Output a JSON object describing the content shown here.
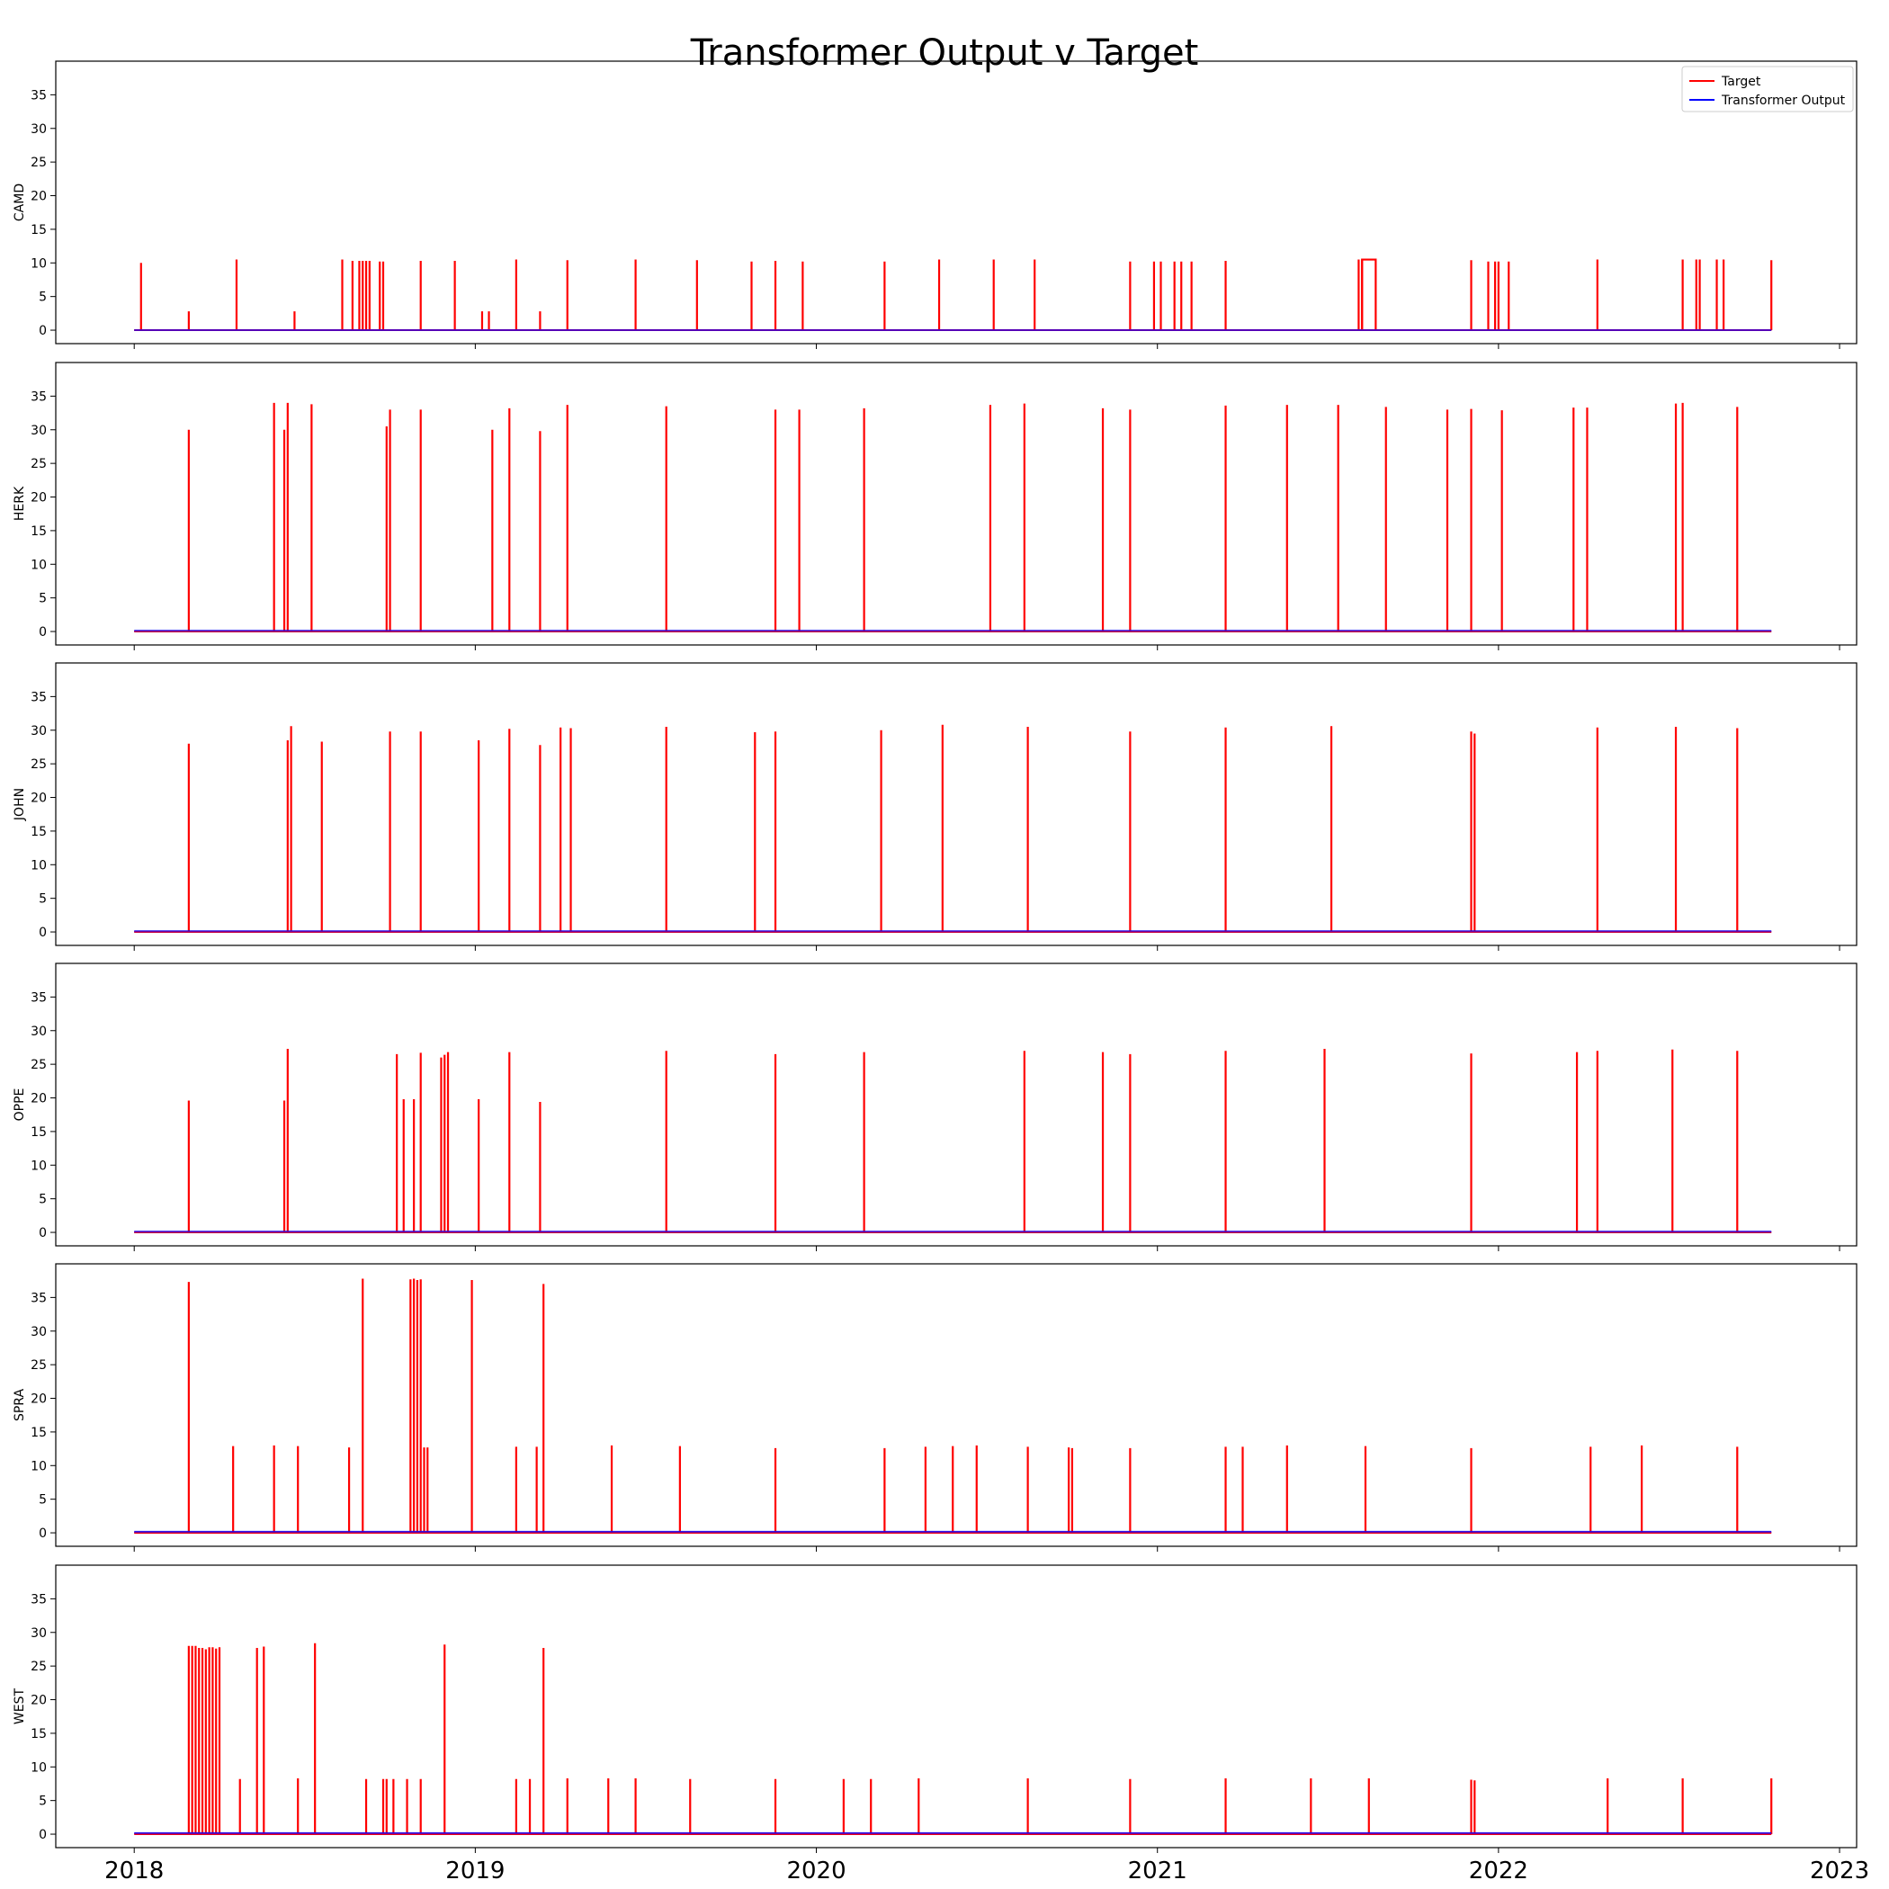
{
  "chart_data": {
    "type": "line",
    "title": "Transformer Output v Target",
    "xlabel": "",
    "x_ticks": [
      "2018",
      "2019",
      "2020",
      "2021",
      "2022",
      "2023"
    ],
    "xlim": [
      2017.77,
      2023.05
    ],
    "data_range": [
      2018.0,
      2022.8
    ],
    "y_ticks": [
      0,
      5,
      10,
      15,
      20,
      25,
      30,
      35
    ],
    "ylim": [
      -2,
      40
    ],
    "grid": false,
    "shared_x": true,
    "legend": {
      "placement": "top-right",
      "panel": 0,
      "entries": [
        {
          "label": "Target",
          "color": "#ff0000"
        },
        {
          "label": "Transformer Output",
          "color": "#0000ff"
        }
      ]
    },
    "series_colors": {
      "Target": "#ff0000",
      "Transformer Output": "#0000ff",
      "overlap": "#8b008b"
    },
    "panels": [
      {
        "ylabel": "CAMD",
        "target_spikes": [
          [
            2018.02,
            10
          ],
          [
            2018.16,
            2.8
          ],
          [
            2018.3,
            10.5
          ],
          [
            2018.47,
            2.8
          ],
          [
            2018.61,
            10.5
          ],
          [
            2018.64,
            10.3
          ],
          [
            2018.66,
            10.3
          ],
          [
            2018.67,
            10.3
          ],
          [
            2018.68,
            10.3
          ],
          [
            2018.69,
            10.3
          ],
          [
            2018.72,
            10.2
          ],
          [
            2018.73,
            10.2
          ],
          [
            2018.84,
            10.3
          ],
          [
            2018.94,
            10.3
          ],
          [
            2019.02,
            2.8
          ],
          [
            2019.04,
            2.8
          ],
          [
            2019.12,
            10.5
          ],
          [
            2019.19,
            2.8
          ],
          [
            2019.27,
            10.4
          ],
          [
            2019.47,
            10.5
          ],
          [
            2019.65,
            10.4
          ],
          [
            2019.81,
            10.2
          ],
          [
            2019.88,
            10.3
          ],
          [
            2019.96,
            10.2
          ],
          [
            2020.2,
            10.2
          ],
          [
            2020.36,
            10.5
          ],
          [
            2020.52,
            10.5
          ],
          [
            2020.64,
            10.5
          ],
          [
            2020.92,
            10.2
          ],
          [
            2020.99,
            10.2
          ],
          [
            2021.01,
            10.2
          ],
          [
            2021.05,
            10.2
          ],
          [
            2021.07,
            10.2
          ],
          [
            2021.1,
            10.2
          ],
          [
            2021.2,
            10.3
          ],
          [
            2021.59,
            10.5
          ],
          [
            2021.6,
            10.5
          ],
          [
            2021.92,
            10.4
          ],
          [
            2021.97,
            10.2
          ],
          [
            2021.99,
            10.2
          ],
          [
            2022.0,
            10.2
          ],
          [
            2022.03,
            10.2
          ],
          [
            2022.29,
            10.5
          ],
          [
            2022.54,
            10.5
          ],
          [
            2022.58,
            10.5
          ],
          [
            2022.59,
            10.5
          ],
          [
            2022.64,
            10.5
          ],
          [
            2022.66,
            10.5
          ],
          [
            2022.8,
            10.4
          ]
        ],
        "target_plateaus": [
          [
            2021.6,
            2021.64,
            10.5
          ]
        ],
        "output_baseline": 0.0
      },
      {
        "ylabel": "HERK",
        "target_spikes": [
          [
            2018.16,
            30
          ],
          [
            2018.41,
            34
          ],
          [
            2018.44,
            30
          ],
          [
            2018.45,
            34
          ],
          [
            2018.52,
            33.8
          ],
          [
            2018.74,
            30.5
          ],
          [
            2018.75,
            33
          ],
          [
            2018.84,
            33
          ],
          [
            2019.05,
            30
          ],
          [
            2019.1,
            33.2
          ],
          [
            2019.19,
            29.8
          ],
          [
            2019.27,
            33.7
          ],
          [
            2019.56,
            33.5
          ],
          [
            2019.88,
            33
          ],
          [
            2019.95,
            33
          ],
          [
            2020.14,
            33.2
          ],
          [
            2020.51,
            33.7
          ],
          [
            2020.61,
            33.9
          ],
          [
            2020.84,
            33.2
          ],
          [
            2020.92,
            33
          ],
          [
            2021.2,
            33.6
          ],
          [
            2021.38,
            33.7
          ],
          [
            2021.53,
            33.7
          ],
          [
            2021.67,
            33.4
          ],
          [
            2021.85,
            33
          ],
          [
            2021.92,
            33.1
          ],
          [
            2022.01,
            32.9
          ],
          [
            2022.22,
            33.3
          ],
          [
            2022.26,
            33.3
          ],
          [
            2022.52,
            33.9
          ],
          [
            2022.54,
            34
          ],
          [
            2022.7,
            33.4
          ]
        ],
        "target_plateaus": [],
        "output_baseline": 0.1
      },
      {
        "ylabel": "JOHN",
        "target_spikes": [
          [
            2018.16,
            28
          ],
          [
            2018.45,
            28.5
          ],
          [
            2018.46,
            30.6
          ],
          [
            2018.55,
            28.3
          ],
          [
            2018.75,
            29.8
          ],
          [
            2018.84,
            29.8
          ],
          [
            2019.01,
            28.5
          ],
          [
            2019.1,
            30.2
          ],
          [
            2019.19,
            27.8
          ],
          [
            2019.25,
            30.4
          ],
          [
            2019.28,
            30.3
          ],
          [
            2019.56,
            30.5
          ],
          [
            2019.82,
            29.7
          ],
          [
            2019.88,
            29.8
          ],
          [
            2020.19,
            30
          ],
          [
            2020.37,
            30.8
          ],
          [
            2020.62,
            30.5
          ],
          [
            2020.92,
            29.8
          ],
          [
            2021.2,
            30.4
          ],
          [
            2021.51,
            30.6
          ],
          [
            2021.92,
            29.8
          ],
          [
            2021.93,
            29.5
          ],
          [
            2022.29,
            30.4
          ],
          [
            2022.52,
            30.5
          ],
          [
            2022.7,
            30.3
          ]
        ],
        "target_plateaus": [],
        "output_baseline": 0.1
      },
      {
        "ylabel": "OPPE",
        "target_spikes": [
          [
            2018.16,
            19.6
          ],
          [
            2018.44,
            19.6
          ],
          [
            2018.45,
            27.3
          ],
          [
            2018.77,
            26.5
          ],
          [
            2018.79,
            19.8
          ],
          [
            2018.82,
            19.8
          ],
          [
            2018.84,
            26.7
          ],
          [
            2018.9,
            26
          ],
          [
            2018.91,
            26.4
          ],
          [
            2018.92,
            26.8
          ],
          [
            2019.01,
            19.8
          ],
          [
            2019.1,
            26.8
          ],
          [
            2019.19,
            19.4
          ],
          [
            2019.56,
            27
          ],
          [
            2019.88,
            26.5
          ],
          [
            2020.14,
            26.8
          ],
          [
            2020.61,
            27
          ],
          [
            2020.84,
            26.8
          ],
          [
            2020.92,
            26.5
          ],
          [
            2021.2,
            27
          ],
          [
            2021.49,
            27.3
          ],
          [
            2021.92,
            26.6
          ],
          [
            2022.23,
            26.8
          ],
          [
            2022.29,
            27
          ],
          [
            2022.51,
            27.2
          ],
          [
            2022.7,
            27
          ]
        ],
        "target_plateaus": [],
        "output_baseline": 0.1
      },
      {
        "ylabel": "SPRA",
        "target_spikes": [
          [
            2018.16,
            37.3
          ],
          [
            2018.29,
            12.9
          ],
          [
            2018.41,
            13
          ],
          [
            2018.48,
            12.9
          ],
          [
            2018.63,
            12.7
          ],
          [
            2018.67,
            37.8
          ],
          [
            2018.81,
            37.7
          ],
          [
            2018.82,
            37.8
          ],
          [
            2018.83,
            37.6
          ],
          [
            2018.84,
            37.7
          ],
          [
            2018.85,
            12.7
          ],
          [
            2018.86,
            12.7
          ],
          [
            2018.99,
            37.6
          ],
          [
            2019.12,
            12.8
          ],
          [
            2019.18,
            12.8
          ],
          [
            2019.2,
            37
          ],
          [
            2019.4,
            13
          ],
          [
            2019.6,
            12.9
          ],
          [
            2019.88,
            12.6
          ],
          [
            2020.2,
            12.6
          ],
          [
            2020.32,
            12.8
          ],
          [
            2020.4,
            12.9
          ],
          [
            2020.47,
            13
          ],
          [
            2020.62,
            12.8
          ],
          [
            2020.74,
            12.7
          ],
          [
            2020.75,
            12.6
          ],
          [
            2020.92,
            12.6
          ],
          [
            2021.2,
            12.8
          ],
          [
            2021.25,
            12.8
          ],
          [
            2021.38,
            13
          ],
          [
            2021.61,
            12.9
          ],
          [
            2021.92,
            12.6
          ],
          [
            2022.27,
            12.8
          ],
          [
            2022.42,
            13
          ],
          [
            2022.7,
            12.8
          ]
        ],
        "target_plateaus": [],
        "output_baseline": 0.15
      },
      {
        "ylabel": "WEST",
        "target_spikes": [
          [
            2018.16,
            28
          ],
          [
            2018.17,
            28
          ],
          [
            2018.18,
            28
          ],
          [
            2018.19,
            27.7
          ],
          [
            2018.2,
            27.7
          ],
          [
            2018.21,
            27.5
          ],
          [
            2018.22,
            27.8
          ],
          [
            2018.23,
            27.8
          ],
          [
            2018.24,
            27.6
          ],
          [
            2018.25,
            27.8
          ],
          [
            2018.31,
            8.2
          ],
          [
            2018.36,
            27.7
          ],
          [
            2018.38,
            27.9
          ],
          [
            2018.48,
            8.3
          ],
          [
            2018.53,
            28.4
          ],
          [
            2018.68,
            8.2
          ],
          [
            2018.73,
            8.2
          ],
          [
            2018.74,
            8.2
          ],
          [
            2018.76,
            8.2
          ],
          [
            2018.8,
            8.2
          ],
          [
            2018.84,
            8.2
          ],
          [
            2018.91,
            28.2
          ],
          [
            2019.12,
            8.2
          ],
          [
            2019.16,
            8.2
          ],
          [
            2019.2,
            27.7
          ],
          [
            2019.27,
            8.3
          ],
          [
            2019.39,
            8.3
          ],
          [
            2019.47,
            8.3
          ],
          [
            2019.63,
            8.2
          ],
          [
            2019.88,
            8.2
          ],
          [
            2020.08,
            8.2
          ],
          [
            2020.16,
            8.2
          ],
          [
            2020.3,
            8.3
          ],
          [
            2020.62,
            8.3
          ],
          [
            2020.92,
            8.2
          ],
          [
            2021.2,
            8.3
          ],
          [
            2021.45,
            8.3
          ],
          [
            2021.62,
            8.3
          ],
          [
            2021.92,
            8.1
          ],
          [
            2021.93,
            8
          ],
          [
            2022.32,
            8.3
          ],
          [
            2022.54,
            8.3
          ],
          [
            2022.8,
            8.3
          ]
        ],
        "target_plateaus": [],
        "output_baseline": 0.15
      }
    ]
  }
}
